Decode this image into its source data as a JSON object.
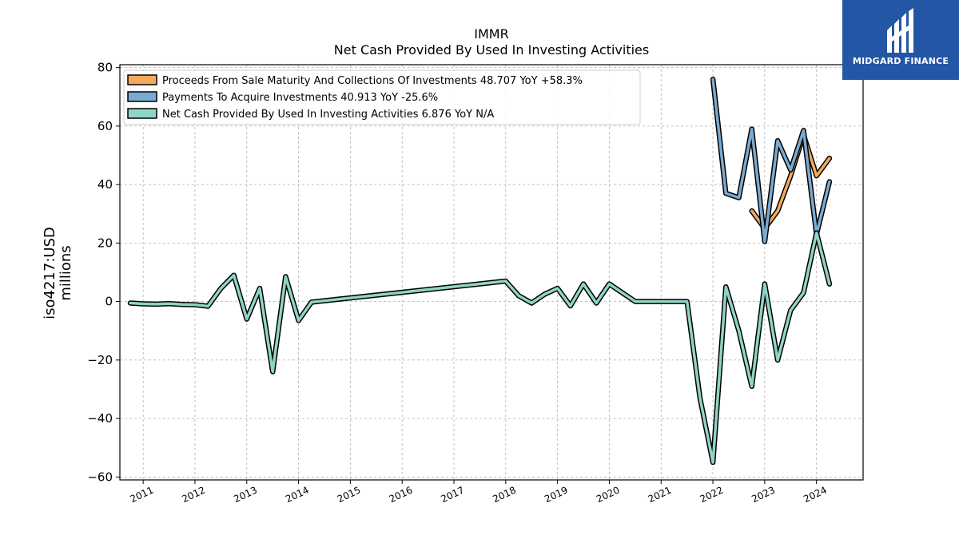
{
  "brand": {
    "name": "MIDGARD FINANCE",
    "color": "#2456a6"
  },
  "chart_data": {
    "type": "line",
    "title": "IMMR",
    "subtitle": "Net Cash Provided By Used In Investing Activities",
    "ylabel": "iso4217:USD",
    "ylabel2": "millions",
    "xlabel": "",
    "xlim": [
      2010.55,
      2024.9
    ],
    "ylim": [
      -61,
      81
    ],
    "grid": true,
    "legend_position": "top-left",
    "x_ticks": [
      "2011",
      "2012",
      "2013",
      "2014",
      "2015",
      "2016",
      "2017",
      "2018",
      "2019",
      "2020",
      "2021",
      "2022",
      "2023",
      "2024"
    ],
    "y_ticks": [
      "−60",
      "−40",
      "−20",
      "0",
      "20",
      "40",
      "60",
      "80"
    ],
    "series": [
      {
        "name": "Proceeds From Sale Maturity And Collections Of Investments",
        "legend_label": "Proceeds From Sale Maturity And Collections Of Investments  48.707 YoY +58.3%",
        "color": "#f5a95f",
        "points": [
          [
            2022.75,
            31
          ],
          [
            2023.0,
            25
          ],
          [
            2023.25,
            31
          ],
          [
            2023.5,
            43
          ],
          [
            2023.75,
            57
          ],
          [
            2024.0,
            43
          ],
          [
            2024.25,
            49
          ]
        ]
      },
      {
        "name": "Payments To Acquire Investments",
        "legend_label": "Payments To Acquire Investments  40.913 YoY -25.6%",
        "color": "#7aaad1",
        "points": [
          [
            2022.0,
            76
          ],
          [
            2022.25,
            37
          ],
          [
            2022.5,
            35.5
          ],
          [
            2022.75,
            59
          ],
          [
            2023.0,
            20.5
          ],
          [
            2023.25,
            55
          ],
          [
            2023.5,
            45
          ],
          [
            2023.75,
            58.5
          ],
          [
            2024.0,
            23
          ],
          [
            2024.25,
            41
          ]
        ]
      },
      {
        "name": "Net Cash Provided By Used In Investing Activities",
        "legend_label": "Net Cash Provided By Used In Investing Activities  6.876 YoY N/A",
        "color": "#8fd4c5",
        "points": [
          [
            2010.75,
            -0.5
          ],
          [
            2011.0,
            -0.8
          ],
          [
            2011.25,
            -0.9
          ],
          [
            2011.5,
            -0.7
          ],
          [
            2011.75,
            -1.0
          ],
          [
            2012.0,
            -1.1
          ],
          [
            2012.25,
            -1.6
          ],
          [
            2012.5,
            4.5
          ],
          [
            2012.75,
            9
          ],
          [
            2013.0,
            -6
          ],
          [
            2013.25,
            4.5
          ],
          [
            2013.5,
            -24
          ],
          [
            2013.75,
            8.5
          ],
          [
            2014.0,
            -6.5
          ],
          [
            2014.25,
            -0.2
          ],
          [
            2018.0,
            7
          ],
          [
            2018.25,
            2
          ],
          [
            2018.5,
            -0.5
          ],
          [
            2018.75,
            2.5
          ],
          [
            2019.0,
            4.5
          ],
          [
            2019.25,
            -1.5
          ],
          [
            2019.5,
            6
          ],
          [
            2019.75,
            -0.5
          ],
          [
            2020.0,
            6
          ],
          [
            2020.25,
            3
          ],
          [
            2020.5,
            0
          ],
          [
            2020.75,
            0
          ],
          [
            2021.0,
            0
          ],
          [
            2021.25,
            0
          ],
          [
            2021.5,
            0
          ],
          [
            2021.75,
            -33
          ],
          [
            2022.0,
            -55
          ],
          [
            2022.25,
            5
          ],
          [
            2022.5,
            -10
          ],
          [
            2022.75,
            -29
          ],
          [
            2023.0,
            6
          ],
          [
            2023.25,
            -20
          ],
          [
            2023.5,
            -3
          ],
          [
            2023.75,
            3
          ],
          [
            2024.0,
            23.5
          ],
          [
            2024.25,
            6
          ]
        ]
      }
    ]
  }
}
